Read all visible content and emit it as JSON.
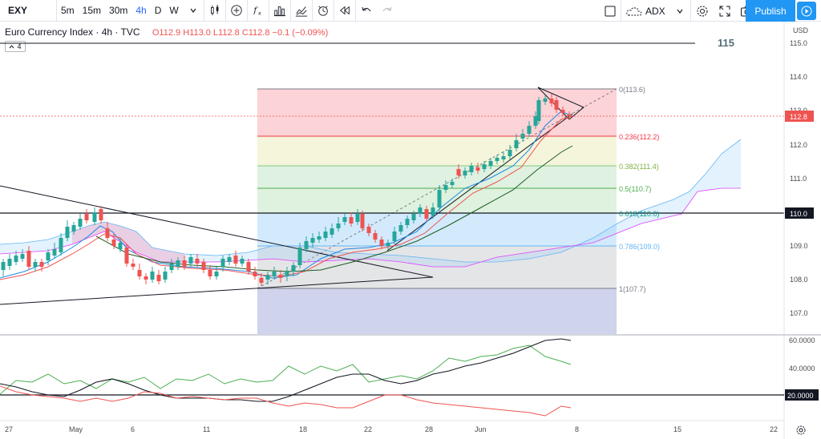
{
  "toolbar": {
    "symbol": "EXY",
    "intervals": [
      "5m",
      "15m",
      "30m",
      "4h",
      "D",
      "W"
    ],
    "active_interval": "4h",
    "indicator_name": "ADX",
    "publish_label": "Publish",
    "icons": [
      "chevron-down-icon",
      "candles-icon",
      "plus-circle-icon",
      "fx-icon",
      "bar-chart-icon",
      "compare-icon",
      "alert-icon",
      "replay-icon",
      "undo-icon",
      "redo-icon",
      "fullscreen-box-icon",
      "cloud-icon",
      "gear-icon",
      "expand-icon",
      "camera-icon",
      "play-icon"
    ]
  },
  "legend": {
    "title": "Euro Currency Index · 4h · TVC",
    "open": "O112.9",
    "high": "H113.0",
    "low": "L112.8",
    "close": "C112.8",
    "change": "−0.1 (−0.09%)",
    "indicator_count": "4"
  },
  "chart_data": {
    "type": "candlestick",
    "price_axis": {
      "currency": "USD",
      "ticks": [
        "115.0",
        "114.0",
        "113.0",
        "112.0",
        "111.0",
        "110.0",
        "109.0",
        "108.0",
        "107.0"
      ],
      "last_price": "112.8",
      "marked_level": "110.0",
      "horizontal_label": "115"
    },
    "time_axis": {
      "ticks": [
        "27",
        "May",
        "6",
        "11",
        "18",
        "22",
        "28",
        "Jun",
        "8",
        "15",
        "22"
      ]
    },
    "fibonacci": [
      {
        "label": "0(113.6)",
        "color": "#787b86"
      },
      {
        "label": "0.236(112.2)",
        "color": "#f23645"
      },
      {
        "label": "0.382(111.4)",
        "color": "#81c784"
      },
      {
        "label": "0.5(110.7)",
        "color": "#4caf50"
      },
      {
        "label": "0.618(110.0)",
        "color": "#009688"
      },
      {
        "label": "0.786(109.0)",
        "color": "#64b5f6"
      },
      {
        "label": "1(107.7)",
        "color": "#787b86"
      }
    ],
    "adx_axis": {
      "ticks": [
        "60.0000",
        "40.0000"
      ],
      "marked_level": "20.0000"
    },
    "colors": {
      "up": "#26a69a",
      "down": "#ef5350",
      "accent": "#2196f3"
    }
  }
}
